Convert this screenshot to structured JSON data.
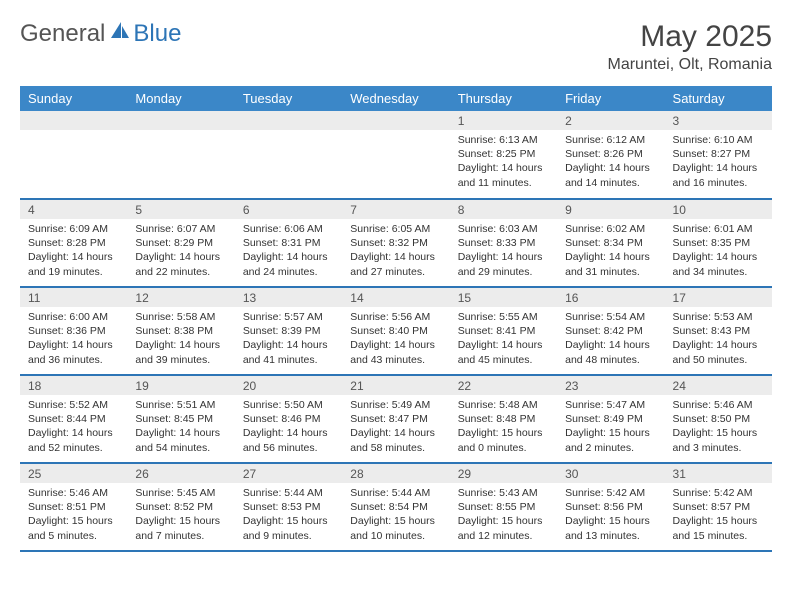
{
  "brand": {
    "general": "General",
    "blue": "Blue"
  },
  "title": {
    "month": "May 2025",
    "location": "Maruntei, Olt, Romania"
  },
  "colors": {
    "header_bg": "#3b87c8",
    "header_text": "#ffffff",
    "divider": "#2d75b6",
    "daynum_bg": "#ececec",
    "text": "#333333",
    "brand_gray": "#555555",
    "brand_blue": "#2d75b6",
    "page_bg": "#ffffff"
  },
  "fonts": {
    "body_pt": 10.5,
    "header_pt": 13,
    "title_pt": 30,
    "location_pt": 16,
    "logo_pt": 24
  },
  "layout": {
    "columns": 7,
    "rows": 5,
    "first_day_column_index": 4
  },
  "weekday_headers": [
    "Sunday",
    "Monday",
    "Tuesday",
    "Wednesday",
    "Thursday",
    "Friday",
    "Saturday"
  ],
  "days": [
    {
      "n": 1,
      "sunrise": "6:13 AM",
      "sunset": "8:25 PM",
      "daylight": "14 hours and 11 minutes."
    },
    {
      "n": 2,
      "sunrise": "6:12 AM",
      "sunset": "8:26 PM",
      "daylight": "14 hours and 14 minutes."
    },
    {
      "n": 3,
      "sunrise": "6:10 AM",
      "sunset": "8:27 PM",
      "daylight": "14 hours and 16 minutes."
    },
    {
      "n": 4,
      "sunrise": "6:09 AM",
      "sunset": "8:28 PM",
      "daylight": "14 hours and 19 minutes."
    },
    {
      "n": 5,
      "sunrise": "6:07 AM",
      "sunset": "8:29 PM",
      "daylight": "14 hours and 22 minutes."
    },
    {
      "n": 6,
      "sunrise": "6:06 AM",
      "sunset": "8:31 PM",
      "daylight": "14 hours and 24 minutes."
    },
    {
      "n": 7,
      "sunrise": "6:05 AM",
      "sunset": "8:32 PM",
      "daylight": "14 hours and 27 minutes."
    },
    {
      "n": 8,
      "sunrise": "6:03 AM",
      "sunset": "8:33 PM",
      "daylight": "14 hours and 29 minutes."
    },
    {
      "n": 9,
      "sunrise": "6:02 AM",
      "sunset": "8:34 PM",
      "daylight": "14 hours and 31 minutes."
    },
    {
      "n": 10,
      "sunrise": "6:01 AM",
      "sunset": "8:35 PM",
      "daylight": "14 hours and 34 minutes."
    },
    {
      "n": 11,
      "sunrise": "6:00 AM",
      "sunset": "8:36 PM",
      "daylight": "14 hours and 36 minutes."
    },
    {
      "n": 12,
      "sunrise": "5:58 AM",
      "sunset": "8:38 PM",
      "daylight": "14 hours and 39 minutes."
    },
    {
      "n": 13,
      "sunrise": "5:57 AM",
      "sunset": "8:39 PM",
      "daylight": "14 hours and 41 minutes."
    },
    {
      "n": 14,
      "sunrise": "5:56 AM",
      "sunset": "8:40 PM",
      "daylight": "14 hours and 43 minutes."
    },
    {
      "n": 15,
      "sunrise": "5:55 AM",
      "sunset": "8:41 PM",
      "daylight": "14 hours and 45 minutes."
    },
    {
      "n": 16,
      "sunrise": "5:54 AM",
      "sunset": "8:42 PM",
      "daylight": "14 hours and 48 minutes."
    },
    {
      "n": 17,
      "sunrise": "5:53 AM",
      "sunset": "8:43 PM",
      "daylight": "14 hours and 50 minutes."
    },
    {
      "n": 18,
      "sunrise": "5:52 AM",
      "sunset": "8:44 PM",
      "daylight": "14 hours and 52 minutes."
    },
    {
      "n": 19,
      "sunrise": "5:51 AM",
      "sunset": "8:45 PM",
      "daylight": "14 hours and 54 minutes."
    },
    {
      "n": 20,
      "sunrise": "5:50 AM",
      "sunset": "8:46 PM",
      "daylight": "14 hours and 56 minutes."
    },
    {
      "n": 21,
      "sunrise": "5:49 AM",
      "sunset": "8:47 PM",
      "daylight": "14 hours and 58 minutes."
    },
    {
      "n": 22,
      "sunrise": "5:48 AM",
      "sunset": "8:48 PM",
      "daylight": "15 hours and 0 minutes."
    },
    {
      "n": 23,
      "sunrise": "5:47 AM",
      "sunset": "8:49 PM",
      "daylight": "15 hours and 2 minutes."
    },
    {
      "n": 24,
      "sunrise": "5:46 AM",
      "sunset": "8:50 PM",
      "daylight": "15 hours and 3 minutes."
    },
    {
      "n": 25,
      "sunrise": "5:46 AM",
      "sunset": "8:51 PM",
      "daylight": "15 hours and 5 minutes."
    },
    {
      "n": 26,
      "sunrise": "5:45 AM",
      "sunset": "8:52 PM",
      "daylight": "15 hours and 7 minutes."
    },
    {
      "n": 27,
      "sunrise": "5:44 AM",
      "sunset": "8:53 PM",
      "daylight": "15 hours and 9 minutes."
    },
    {
      "n": 28,
      "sunrise": "5:44 AM",
      "sunset": "8:54 PM",
      "daylight": "15 hours and 10 minutes."
    },
    {
      "n": 29,
      "sunrise": "5:43 AM",
      "sunset": "8:55 PM",
      "daylight": "15 hours and 12 minutes."
    },
    {
      "n": 30,
      "sunrise": "5:42 AM",
      "sunset": "8:56 PM",
      "daylight": "15 hours and 13 minutes."
    },
    {
      "n": 31,
      "sunrise": "5:42 AM",
      "sunset": "8:57 PM",
      "daylight": "15 hours and 15 minutes."
    }
  ],
  "labels": {
    "sunrise": "Sunrise:",
    "sunset": "Sunset:",
    "daylight": "Daylight:"
  }
}
